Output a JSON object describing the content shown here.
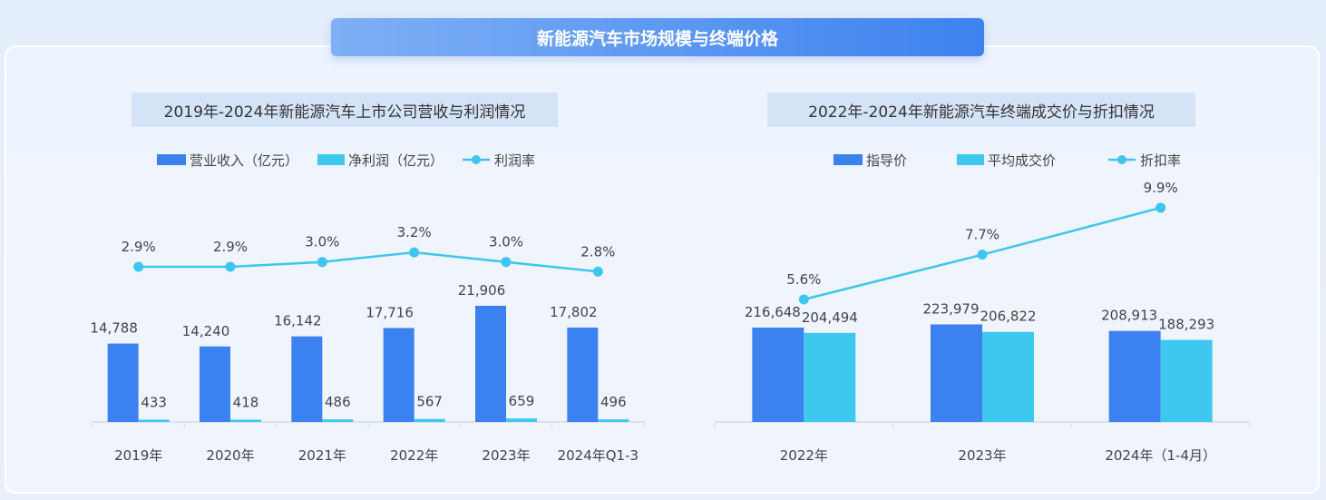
{
  "page_title": "新能源汽车市场规模与终端价格",
  "colors": {
    "primary_bar": "#3b82f0",
    "secondary_bar": "#3fc8ef",
    "line": "#3ec6ee"
  },
  "chart_data": [
    {
      "type": "bar",
      "title": "2019年-2024年新能源汽车上市公司营收与利润情况",
      "categories": [
        "2019年",
        "2020年",
        "2021年",
        "2022年",
        "2023年",
        "2024年Q1-3"
      ],
      "series": [
        {
          "name": "营业收入（亿元）",
          "kind": "bar",
          "values": [
            14788,
            14240,
            16142,
            17716,
            21906,
            17802
          ],
          "labels": [
            "14,788",
            "14,240",
            "16,142",
            "17,716",
            "21,906",
            "17,802"
          ]
        },
        {
          "name": "净利润（亿元）",
          "kind": "bar",
          "values": [
            433,
            418,
            486,
            567,
            659,
            496
          ],
          "labels": [
            "433",
            "418",
            "486",
            "567",
            "659",
            "496"
          ]
        },
        {
          "name": "利润率",
          "kind": "line",
          "values": [
            2.9,
            2.9,
            3.0,
            3.2,
            3.0,
            2.8
          ],
          "labels": [
            "2.9%",
            "2.9%",
            "3.0%",
            "3.2%",
            "3.0%",
            "2.8%"
          ]
        }
      ],
      "legend": "top",
      "grid": false
    },
    {
      "type": "bar",
      "title": "2022年-2024年新能源汽车终端成交价与折扣情况",
      "categories": [
        "2022年",
        "2023年",
        "2024年（1-4月）"
      ],
      "series": [
        {
          "name": "指导价",
          "kind": "bar",
          "values": [
            216648,
            223979,
            208913
          ],
          "labels": [
            "216,648",
            "223,979",
            "208,913"
          ]
        },
        {
          "name": "平均成交价",
          "kind": "bar",
          "values": [
            204494,
            206822,
            188293
          ],
          "labels": [
            "204,494",
            "206,822",
            "188,293"
          ]
        },
        {
          "name": "折扣率",
          "kind": "line",
          "values": [
            5.6,
            7.7,
            9.9
          ],
          "labels": [
            "5.6%",
            "7.7%",
            "9.9%"
          ]
        }
      ],
      "legend": "top",
      "grid": false
    }
  ]
}
